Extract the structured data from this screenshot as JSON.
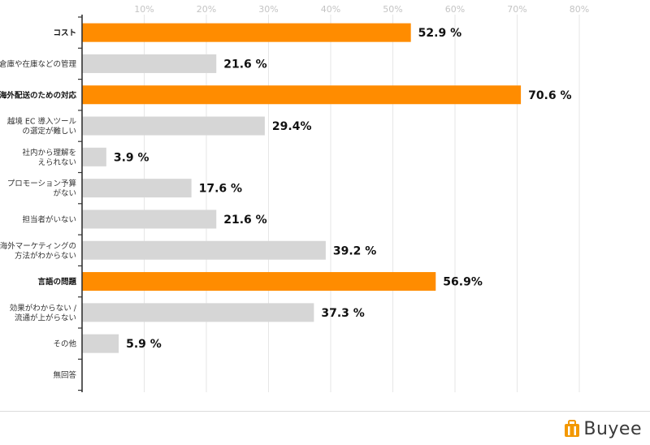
{
  "chart_data": {
    "type": "bar",
    "orientation": "horizontal",
    "xlim": [
      0,
      80
    ],
    "ticks": [
      0,
      10,
      20,
      30,
      40,
      50,
      60,
      70,
      80
    ],
    "tick_labels": [
      "",
      "10%",
      "20%",
      "30%",
      "40%",
      "50%",
      "60%",
      "70%",
      "80%"
    ],
    "highlight_color": "#ff8c00",
    "default_color": "#d6d6d6",
    "categories": [
      {
        "label": [
          "コスト"
        ],
        "value": 52.9,
        "value_label": "52.9 %",
        "highlight": true
      },
      {
        "label": [
          "倉庫や在庫などの管理"
        ],
        "value": 21.6,
        "value_label": "21.6 %",
        "highlight": false
      },
      {
        "label": [
          "海外配送のための対応"
        ],
        "value": 70.6,
        "value_label": "70.6 %",
        "highlight": true
      },
      {
        "label": [
          "越境 EC 導入ツール",
          "の選定が難しい"
        ],
        "value": 29.4,
        "value_label": "29.4%",
        "highlight": false
      },
      {
        "label": [
          "社内から理解を",
          "えられない"
        ],
        "value": 3.9,
        "value_label": "3.9 %",
        "highlight": false
      },
      {
        "label": [
          "プロモーション予算",
          "がない"
        ],
        "value": 17.6,
        "value_label": "17.6 %",
        "highlight": false
      },
      {
        "label": [
          "担当者がいない"
        ],
        "value": 21.6,
        "value_label": "21.6 %",
        "highlight": false
      },
      {
        "label": [
          "海外マーケティングの",
          "方法がわからない"
        ],
        "value": 39.2,
        "value_label": "39.2 %",
        "highlight": false
      },
      {
        "label": [
          "言語の問題"
        ],
        "value": 56.9,
        "value_label": "56.9%",
        "highlight": true
      },
      {
        "label": [
          "効果がわからない /",
          "流通が上がらない"
        ],
        "value": 37.3,
        "value_label": "37.3 %",
        "highlight": false
      },
      {
        "label": [
          "その他"
        ],
        "value": 5.9,
        "value_label": "5.9 %",
        "highlight": false
      },
      {
        "label": [
          "無回答"
        ],
        "value": 0,
        "value_label": "",
        "highlight": false
      }
    ]
  },
  "footer": {
    "logo_text": "Buyee",
    "logo_color": "#f39800"
  }
}
